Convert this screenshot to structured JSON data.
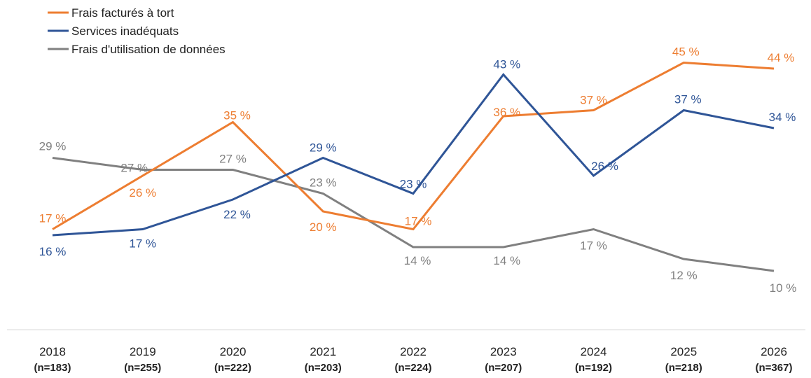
{
  "chart_data": {
    "type": "line",
    "title": "",
    "xlabel": "",
    "ylabel": "",
    "ylim": [
      0,
      50
    ],
    "grid": false,
    "legend_position": "top-left",
    "categories": [
      "2018",
      "2019",
      "2020",
      "2021",
      "2022",
      "2023",
      "2024",
      "2025",
      "2026"
    ],
    "category_sublabels": [
      "(n=183)",
      "(n=255)",
      "(n=222)",
      "(n=203)",
      "(n=224)",
      "(n=207)",
      "(n=192)",
      "(n=218)",
      "(n=367)"
    ],
    "series": [
      {
        "name": "Frais facturés à tort",
        "color": "#ED7D31",
        "values": [
          17,
          26,
          35,
          20,
          17,
          36,
          37,
          45,
          44
        ],
        "labels": [
          "17 %",
          "26 %",
          "35 %",
          "20 %",
          "17 %",
          "36 %",
          "37 %",
          "45 %",
          "44 %"
        ]
      },
      {
        "name": "Services inadéquats",
        "color": "#2F5597",
        "values": [
          16,
          17,
          22,
          29,
          23,
          43,
          26,
          37,
          34
        ],
        "labels": [
          "16 %",
          "17 %",
          "22 %",
          "29 %",
          "23 %",
          "43 %",
          "26 %",
          "37 %",
          "34 %"
        ]
      },
      {
        "name": "Frais d'utilisation de données",
        "color": "#808080",
        "values": [
          29,
          27,
          27,
          23,
          14,
          14,
          17,
          12,
          10
        ],
        "labels": [
          "29 %",
          "27 %",
          "27 %",
          "23 %",
          "14 %",
          "14 %",
          "17 %",
          "12 %",
          "10 %"
        ]
      }
    ]
  }
}
